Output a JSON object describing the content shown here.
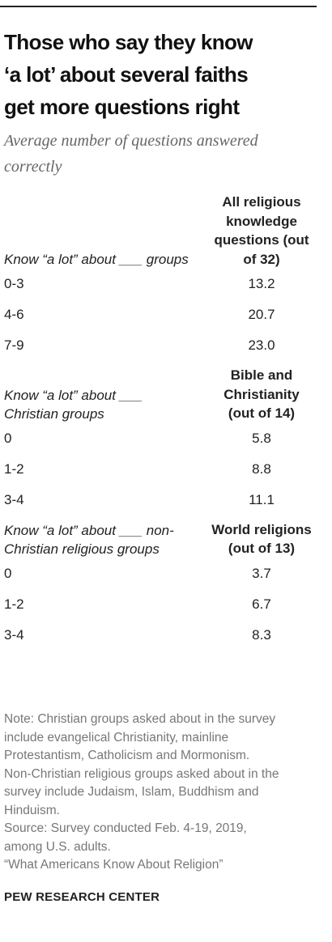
{
  "header": {
    "title_lines": [
      "Those who say they know",
      "‘a lot’ about several faiths",
      "get more questions right"
    ],
    "subtitle": "Average number of questions answered correctly"
  },
  "sections": [
    {
      "label": "Know “a lot” about ___ groups",
      "column": "All religious knowledge questions (out of 32)",
      "rows": [
        [
          "0-3",
          "13.2"
        ],
        [
          "4-6",
          "20.7"
        ],
        [
          "7-9",
          "23.0"
        ]
      ]
    },
    {
      "label": "Know “a lot” about ___ Christian groups",
      "column": "Bible and Christianity (out of 14)",
      "rows": [
        [
          "0",
          "5.8"
        ],
        [
          "1-2",
          "8.8"
        ],
        [
          "3-4",
          "11.1"
        ]
      ]
    },
    {
      "label": "Know “a lot” about ___ non-Christian religious groups",
      "column": "World religions (out of 13)",
      "rows": [
        [
          "0",
          "3.7"
        ],
        [
          "1-2",
          "6.7"
        ],
        [
          "3-4",
          "8.3"
        ]
      ]
    }
  ],
  "notes": {
    "note": "Note: Christian groups asked about in the survey include evangelical Christianity, mainline Protestantism, Catholicism and Mormonism. Non-Christian religious groups asked about in the survey include Judaism, Islam, Buddhism and Hinduism.",
    "source": "Source: Survey conducted Feb. 4-19, 2019, among U.S. adults.",
    "report": "“What Americans Know About Religion”"
  },
  "footer": "PEW RESEARCH CENTER"
}
